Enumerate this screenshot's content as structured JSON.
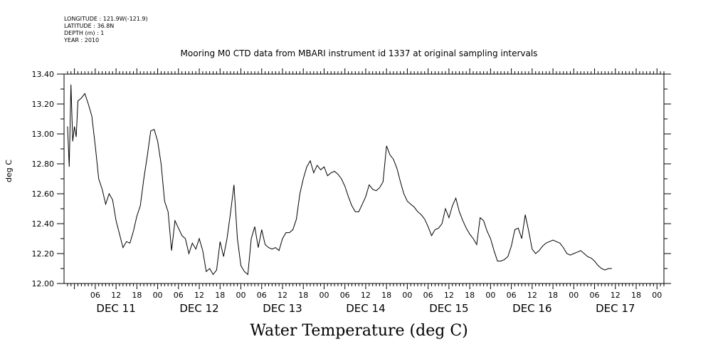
{
  "meta": {
    "longitude": "LONGITUDE : 121.9W(-121.9)",
    "latitude": "LATITUDE : 36.8N",
    "depth": "DEPTH (m) : 1",
    "year": "YEAR : 2010"
  },
  "chart_data": {
    "type": "line",
    "title": "Mooring M0 CTD data from MBARI instrument id 1337 at original sampling intervals",
    "xlabel": "Water Temperature (deg C)",
    "ylabel": "deg C",
    "ylim": [
      12.0,
      13.4
    ],
    "yticks": [
      "12.00",
      "12.20",
      "12.40",
      "12.60",
      "12.80",
      "13.00",
      "13.20",
      "13.40"
    ],
    "hour_tick_labels": [
      "06",
      "12",
      "18",
      "00",
      "06",
      "12",
      "18",
      "00",
      "06",
      "12",
      "18",
      "00",
      "06",
      "12",
      "18",
      "00",
      "06",
      "12",
      "18",
      "00",
      "06",
      "12",
      "18",
      "00",
      "06",
      "12",
      "18",
      "00"
    ],
    "day_labels": [
      "DEC 11",
      "DEC 12",
      "DEC 13",
      "DEC 14",
      "DEC 15",
      "DEC 16",
      "DEC 17"
    ],
    "grid": false,
    "series": [
      {
        "values": [
          [
            "2010-12-10T22:00",
            13.05
          ],
          [
            "2010-12-10T22:30",
            12.78
          ],
          [
            "2010-12-10T23:00",
            13.33
          ],
          [
            "2010-12-10T23:30",
            12.95
          ],
          [
            "2010-12-11T00:00",
            13.05
          ],
          [
            "2010-12-11T00:30",
            12.98
          ],
          [
            "2010-12-11T01:00",
            13.22
          ],
          [
            "2010-12-11T02:00",
            13.24
          ],
          [
            "2010-12-11T03:00",
            13.27
          ],
          [
            "2010-12-11T04:00",
            13.2
          ],
          [
            "2010-12-11T05:00",
            13.12
          ],
          [
            "2010-12-11T06:00",
            12.92
          ],
          [
            "2010-12-11T07:00",
            12.7
          ],
          [
            "2010-12-11T08:00",
            12.63
          ],
          [
            "2010-12-11T09:00",
            12.53
          ],
          [
            "2010-12-11T10:00",
            12.6
          ],
          [
            "2010-12-11T11:00",
            12.56
          ],
          [
            "2010-12-11T12:00",
            12.42
          ],
          [
            "2010-12-11T13:00",
            12.33
          ],
          [
            "2010-12-11T14:00",
            12.24
          ],
          [
            "2010-12-11T15:00",
            12.28
          ],
          [
            "2010-12-11T16:00",
            12.27
          ],
          [
            "2010-12-11T17:00",
            12.35
          ],
          [
            "2010-12-11T18:00",
            12.45
          ],
          [
            "2010-12-11T19:00",
            12.52
          ],
          [
            "2010-12-11T20:00",
            12.7
          ],
          [
            "2010-12-11T21:00",
            12.85
          ],
          [
            "2010-12-11T22:00",
            13.02
          ],
          [
            "2010-12-11T23:00",
            13.03
          ],
          [
            "2010-12-12T00:00",
            12.95
          ],
          [
            "2010-12-12T01:00",
            12.8
          ],
          [
            "2010-12-12T02:00",
            12.55
          ],
          [
            "2010-12-12T03:00",
            12.48
          ],
          [
            "2010-12-12T04:00",
            12.22
          ],
          [
            "2010-12-12T05:00",
            12.42
          ],
          [
            "2010-12-12T06:00",
            12.37
          ],
          [
            "2010-12-12T07:00",
            12.32
          ],
          [
            "2010-12-12T08:00",
            12.3
          ],
          [
            "2010-12-12T09:00",
            12.2
          ],
          [
            "2010-12-12T10:00",
            12.27
          ],
          [
            "2010-12-12T11:00",
            12.23
          ],
          [
            "2010-12-12T12:00",
            12.3
          ],
          [
            "2010-12-12T13:00",
            12.22
          ],
          [
            "2010-12-12T14:00",
            12.08
          ],
          [
            "2010-12-12T15:00",
            12.1
          ],
          [
            "2010-12-12T16:00",
            12.06
          ],
          [
            "2010-12-12T17:00",
            12.09
          ],
          [
            "2010-12-12T18:00",
            12.28
          ],
          [
            "2010-12-12T19:00",
            12.18
          ],
          [
            "2010-12-12T20:00",
            12.3
          ],
          [
            "2010-12-12T21:00",
            12.47
          ],
          [
            "2010-12-12T22:00",
            12.66
          ],
          [
            "2010-12-12T23:00",
            12.3
          ],
          [
            "2010-12-13T00:00",
            12.12
          ],
          [
            "2010-12-13T01:00",
            12.08
          ],
          [
            "2010-12-13T02:00",
            12.06
          ],
          [
            "2010-12-13T03:00",
            12.3
          ],
          [
            "2010-12-13T04:00",
            12.38
          ],
          [
            "2010-12-13T05:00",
            12.24
          ],
          [
            "2010-12-13T06:00",
            12.36
          ],
          [
            "2010-12-13T07:00",
            12.26
          ],
          [
            "2010-12-13T08:00",
            12.24
          ],
          [
            "2010-12-13T09:00",
            12.23
          ],
          [
            "2010-12-13T10:00",
            12.24
          ],
          [
            "2010-12-13T11:00",
            12.22
          ],
          [
            "2010-12-13T12:00",
            12.3
          ],
          [
            "2010-12-13T13:00",
            12.34
          ],
          [
            "2010-12-13T14:00",
            12.34
          ],
          [
            "2010-12-13T15:00",
            12.36
          ],
          [
            "2010-12-13T16:00",
            12.43
          ],
          [
            "2010-12-13T17:00",
            12.6
          ],
          [
            "2010-12-13T18:00",
            12.7
          ],
          [
            "2010-12-13T19:00",
            12.78
          ],
          [
            "2010-12-13T20:00",
            12.82
          ],
          [
            "2010-12-13T21:00",
            12.74
          ],
          [
            "2010-12-13T22:00",
            12.79
          ],
          [
            "2010-12-13T23:00",
            12.76
          ],
          [
            "2010-12-14T00:00",
            12.78
          ],
          [
            "2010-12-14T01:00",
            12.72
          ],
          [
            "2010-12-14T02:00",
            12.74
          ],
          [
            "2010-12-14T03:00",
            12.75
          ],
          [
            "2010-12-14T04:00",
            12.73
          ],
          [
            "2010-12-14T05:00",
            12.7
          ],
          [
            "2010-12-14T06:00",
            12.65
          ],
          [
            "2010-12-14T07:00",
            12.58
          ],
          [
            "2010-12-14T08:00",
            12.52
          ],
          [
            "2010-12-14T09:00",
            12.48
          ],
          [
            "2010-12-14T10:00",
            12.48
          ],
          [
            "2010-12-14T11:00",
            12.53
          ],
          [
            "2010-12-14T12:00",
            12.58
          ],
          [
            "2010-12-14T13:00",
            12.66
          ],
          [
            "2010-12-14T14:00",
            12.63
          ],
          [
            "2010-12-14T15:00",
            12.62
          ],
          [
            "2010-12-14T16:00",
            12.64
          ],
          [
            "2010-12-14T17:00",
            12.68
          ],
          [
            "2010-12-14T18:00",
            12.92
          ],
          [
            "2010-12-14T19:00",
            12.86
          ],
          [
            "2010-12-14T20:00",
            12.83
          ],
          [
            "2010-12-14T21:00",
            12.77
          ],
          [
            "2010-12-14T22:00",
            12.68
          ],
          [
            "2010-12-14T23:00",
            12.6
          ],
          [
            "2010-12-15T00:00",
            12.55
          ],
          [
            "2010-12-15T01:00",
            12.53
          ],
          [
            "2010-12-15T02:00",
            12.51
          ],
          [
            "2010-12-15T03:00",
            12.48
          ],
          [
            "2010-12-15T04:00",
            12.46
          ],
          [
            "2010-12-15T05:00",
            12.43
          ],
          [
            "2010-12-15T06:00",
            12.38
          ],
          [
            "2010-12-15T07:00",
            12.32
          ],
          [
            "2010-12-15T08:00",
            12.36
          ],
          [
            "2010-12-15T09:00",
            12.37
          ],
          [
            "2010-12-15T10:00",
            12.4
          ],
          [
            "2010-12-15T11:00",
            12.5
          ],
          [
            "2010-12-15T12:00",
            12.44
          ],
          [
            "2010-12-15T13:00",
            12.52
          ],
          [
            "2010-12-15T14:00",
            12.57
          ],
          [
            "2010-12-15T15:00",
            12.48
          ],
          [
            "2010-12-15T16:00",
            12.42
          ],
          [
            "2010-12-15T17:00",
            12.37
          ],
          [
            "2010-12-15T18:00",
            12.33
          ],
          [
            "2010-12-15T19:00",
            12.3
          ],
          [
            "2010-12-15T20:00",
            12.26
          ],
          [
            "2010-12-15T21:00",
            12.44
          ],
          [
            "2010-12-15T22:00",
            12.42
          ],
          [
            "2010-12-15T23:00",
            12.35
          ],
          [
            "2010-12-16T00:00",
            12.3
          ],
          [
            "2010-12-16T01:00",
            12.22
          ],
          [
            "2010-12-16T02:00",
            12.15
          ],
          [
            "2010-12-16T03:00",
            12.15
          ],
          [
            "2010-12-16T04:00",
            12.16
          ],
          [
            "2010-12-16T05:00",
            12.18
          ],
          [
            "2010-12-16T06:00",
            12.25
          ],
          [
            "2010-12-16T07:00",
            12.36
          ],
          [
            "2010-12-16T08:00",
            12.37
          ],
          [
            "2010-12-16T09:00",
            12.3
          ],
          [
            "2010-12-16T10:00",
            12.46
          ],
          [
            "2010-12-16T11:00",
            12.35
          ],
          [
            "2010-12-16T12:00",
            12.23
          ],
          [
            "2010-12-16T13:00",
            12.2
          ],
          [
            "2010-12-16T14:00",
            12.22
          ],
          [
            "2010-12-16T15:00",
            12.25
          ],
          [
            "2010-12-16T16:00",
            12.27
          ],
          [
            "2010-12-16T17:00",
            12.28
          ],
          [
            "2010-12-16T18:00",
            12.29
          ],
          [
            "2010-12-16T19:00",
            12.28
          ],
          [
            "2010-12-16T20:00",
            12.27
          ],
          [
            "2010-12-16T21:00",
            12.24
          ],
          [
            "2010-12-16T22:00",
            12.2
          ],
          [
            "2010-12-16T23:00",
            12.19
          ],
          [
            "2010-12-17T00:00",
            12.2
          ],
          [
            "2010-12-17T01:00",
            12.21
          ],
          [
            "2010-12-17T02:00",
            12.22
          ],
          [
            "2010-12-17T03:00",
            12.2
          ],
          [
            "2010-12-17T04:00",
            12.18
          ],
          [
            "2010-12-17T05:00",
            12.17
          ],
          [
            "2010-12-17T06:00",
            12.15
          ],
          [
            "2010-12-17T07:00",
            12.12
          ],
          [
            "2010-12-17T08:00",
            12.1
          ],
          [
            "2010-12-17T09:00",
            12.09
          ],
          [
            "2010-12-17T10:00",
            12.1
          ],
          [
            "2010-12-17T11:00",
            12.1
          ]
        ]
      }
    ]
  }
}
